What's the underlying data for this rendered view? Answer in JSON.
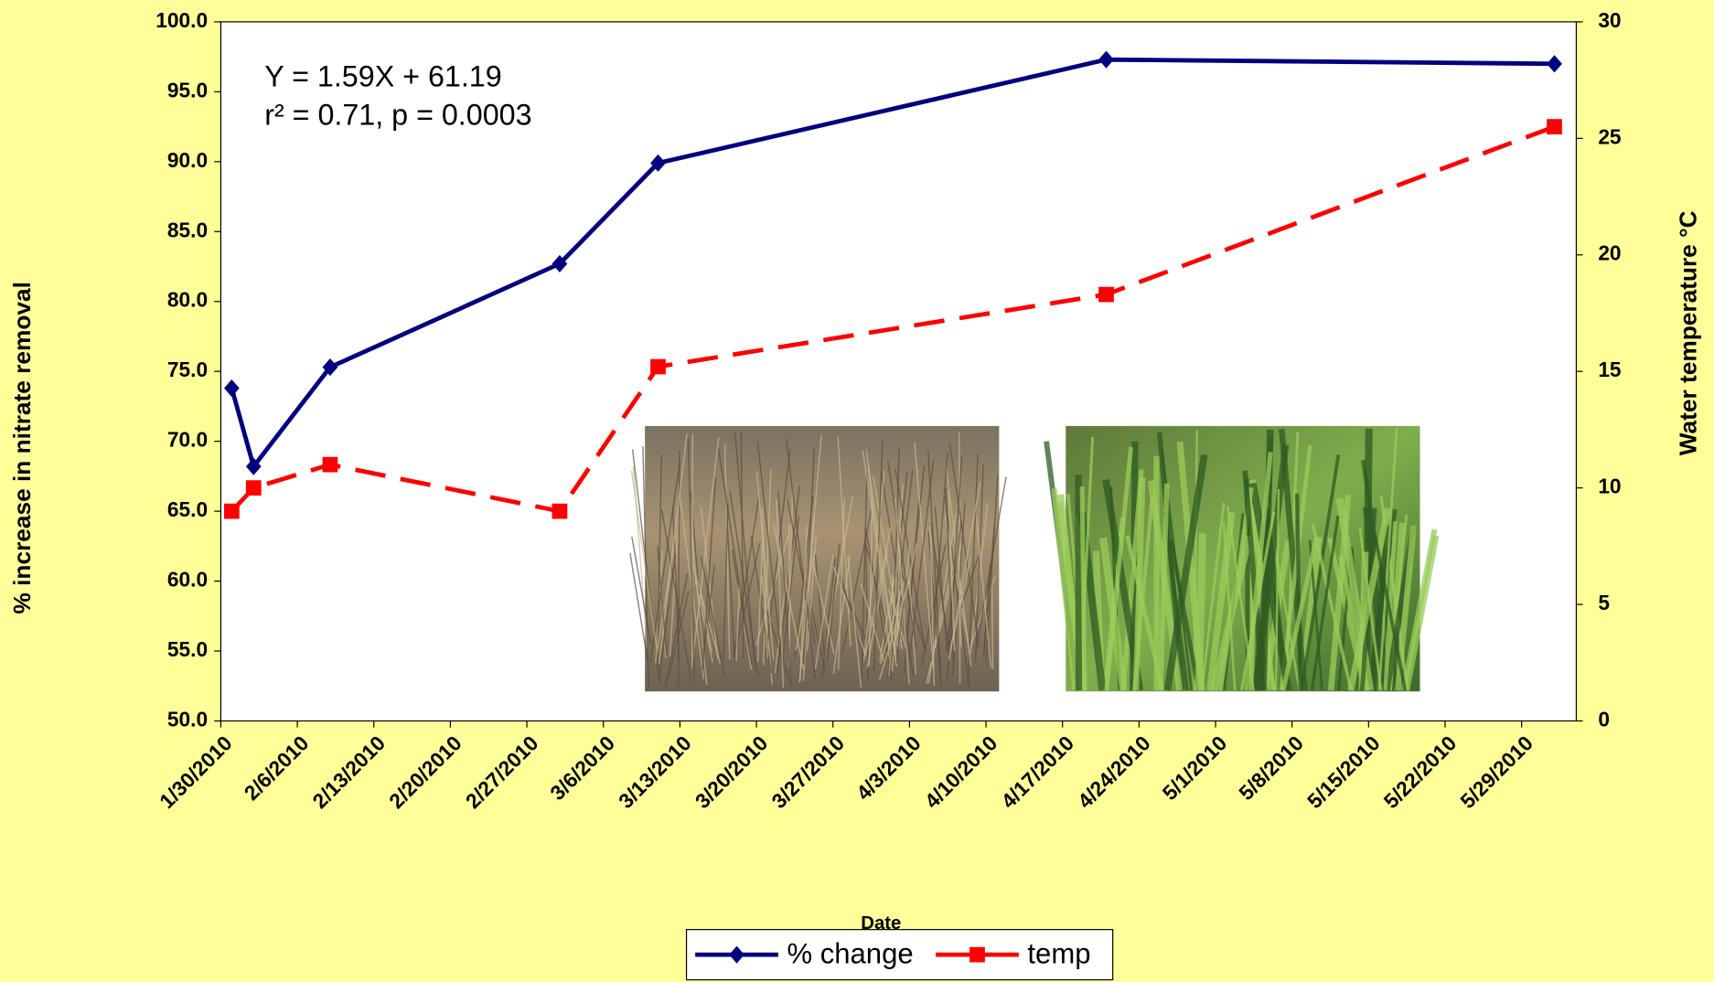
{
  "chart_data": {
    "type": "line",
    "x_label": "Date",
    "y_label": "% increase in nitrate removal",
    "y2_label": "Water temperature °C",
    "annotations": [
      "Y = 1.59X + 61.19",
      "r² = 0.71, p = 0.0003"
    ],
    "x": [
      "1/31/2010",
      "2/2/2010",
      "2/9/2010",
      "3/2/2010",
      "3/11/2010",
      "4/21/2010",
      "6/1/2010"
    ],
    "xlim": [
      "1/30/2010",
      "6/3/2010"
    ],
    "xticks": [
      "1/30/2010",
      "2/6/2010",
      "2/13/2010",
      "2/20/2010",
      "2/27/2010",
      "3/6/2010",
      "3/13/2010",
      "3/20/2010",
      "3/27/2010",
      "4/3/2010",
      "4/10/2010",
      "4/17/2010",
      "4/24/2010",
      "5/1/2010",
      "5/8/2010",
      "5/15/2010",
      "5/22/2010",
      "5/29/2010"
    ],
    "ylim": [
      50,
      100
    ],
    "yticks": [
      {
        "value": 50,
        "label": "50.0"
      },
      {
        "value": 55,
        "label": "55.0"
      },
      {
        "value": 60,
        "label": "60.0"
      },
      {
        "value": 65,
        "label": "65.0"
      },
      {
        "value": 70,
        "label": "70.0"
      },
      {
        "value": 75,
        "label": "75.0"
      },
      {
        "value": 80,
        "label": "80.0"
      },
      {
        "value": 85,
        "label": "85.0"
      },
      {
        "value": 90,
        "label": "90.0"
      },
      {
        "value": 95,
        "label": "95.0"
      },
      {
        "value": 100,
        "label": "100.0"
      }
    ],
    "y2lim": [
      0,
      30
    ],
    "y2ticks": [
      0,
      5,
      10,
      15,
      20,
      25,
      30
    ],
    "series": [
      {
        "name": "% change",
        "color": "#000080",
        "marker": "diamond",
        "dash": false,
        "values": [
          73.8,
          68.2,
          75.3,
          82.7,
          89.9,
          97.3,
          97.0
        ]
      },
      {
        "name": "temp",
        "color": "#ff0000",
        "marker": "square",
        "dash": true,
        "axis": "y2",
        "values": [
          9,
          10,
          11,
          9,
          15.2,
          18.3,
          25.5
        ]
      }
    ]
  }
}
